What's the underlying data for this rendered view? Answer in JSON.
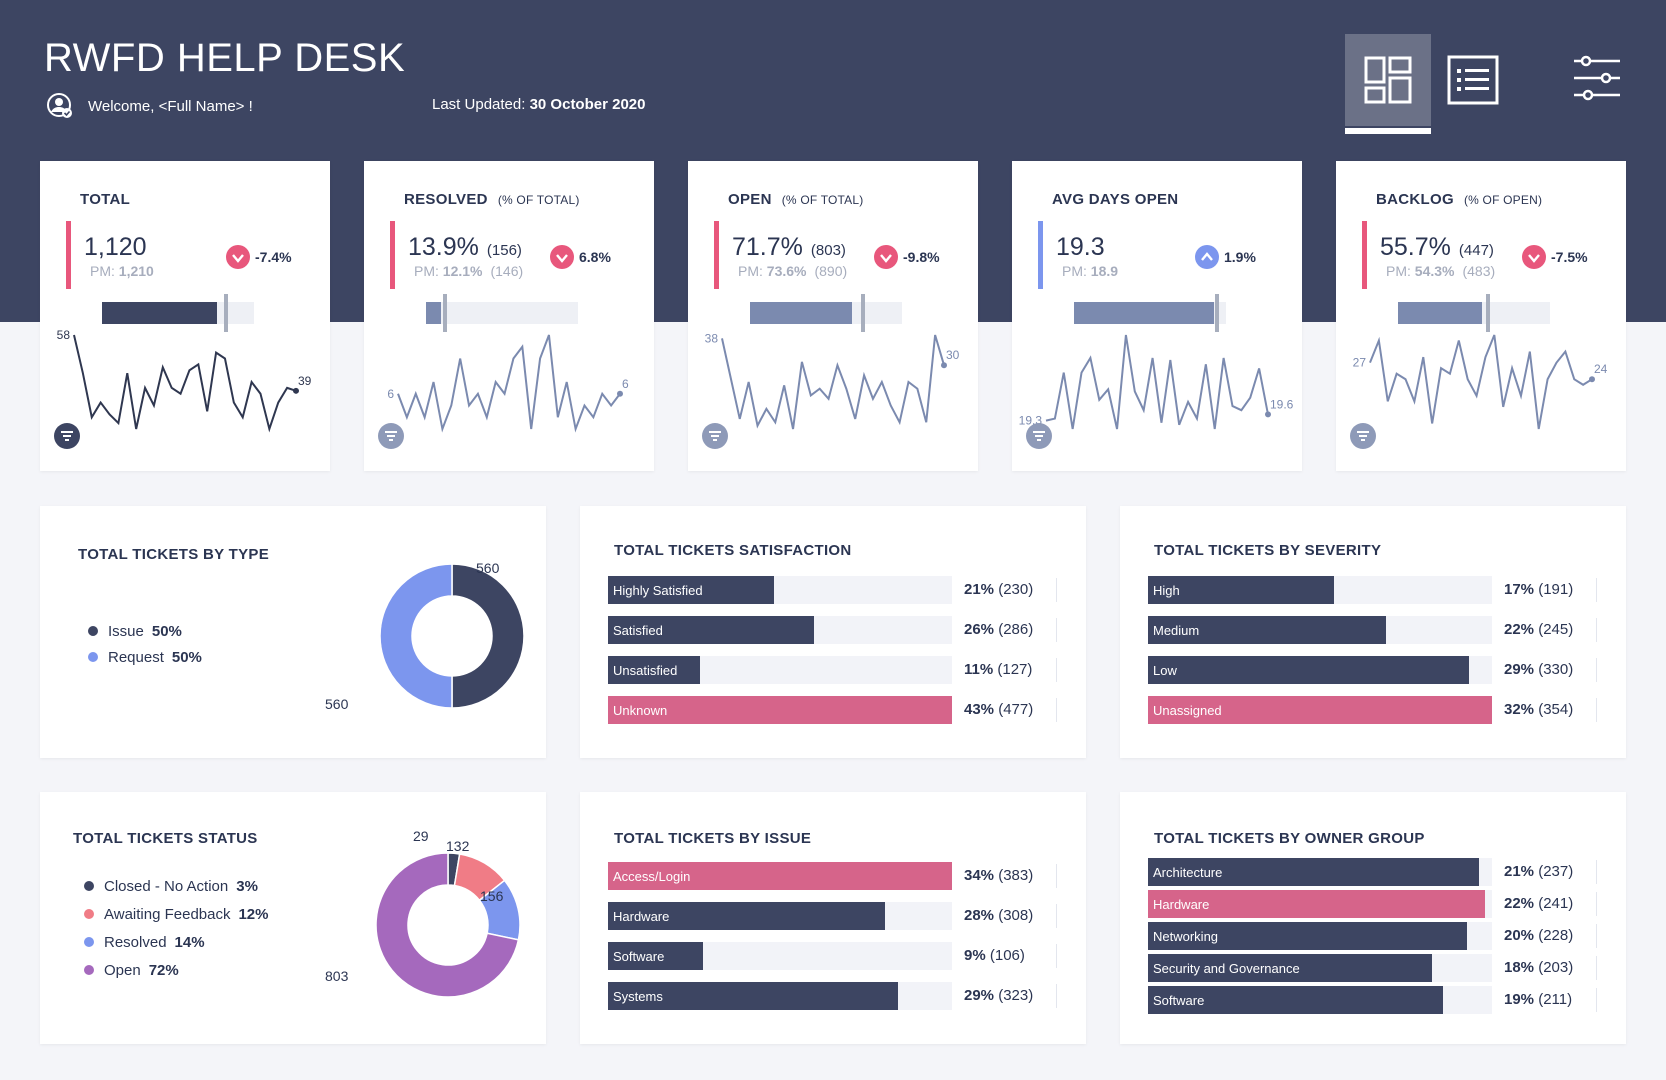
{
  "header": {
    "title": "RWFD HELP DESK",
    "welcome": "Welcome, <Full Name> !",
    "last_updated_label": "Last Updated:",
    "last_updated_value": "30 October 2020"
  },
  "kpis": [
    {
      "title": "TOTAL",
      "subtitle": "",
      "value": "1,120",
      "count": "",
      "pm_label": "PM:",
      "pm_value": "1,210",
      "pm_count": "",
      "delta": "-7.4%",
      "direction": "down",
      "accent": "#e8577c",
      "fill_color": "#3d4562",
      "progress": 0.755,
      "marker": 0.8,
      "spark_start": "58",
      "spark_end": "39",
      "spark_color": "#2f3750"
    },
    {
      "title": "RESOLVED",
      "subtitle": "(% OF TOTAL)",
      "value": "13.9%",
      "count": "(156)",
      "pm_label": "PM:",
      "pm_value": "12.1%",
      "pm_count": "(146)",
      "delta": "6.8%",
      "direction": "down",
      "accent": "#e8577c",
      "fill_color": "#7b8aaf",
      "progress": 0.1,
      "marker": 0.11,
      "spark_start": "6",
      "spark_end": "6",
      "spark_color": "#7b8aaf"
    },
    {
      "title": "OPEN",
      "subtitle": "(% OF TOTAL)",
      "value": "71.7%",
      "count": "(803)",
      "pm_label": "PM:",
      "pm_value": "73.6%",
      "pm_count": "(890)",
      "delta": "-9.8%",
      "direction": "down",
      "accent": "#e8577c",
      "fill_color": "#7b8aaf",
      "progress": 0.67,
      "marker": 0.73,
      "spark_start": "38",
      "spark_end": "30",
      "spark_color": "#7b8aaf"
    },
    {
      "title": "AVG DAYS OPEN",
      "subtitle": "",
      "value": "19.3",
      "count": "",
      "pm_label": "PM:",
      "pm_value": "18.9",
      "pm_count": "",
      "delta": "1.9%",
      "direction": "up",
      "accent": "#7c96ee",
      "fill_color": "#7b8aaf",
      "progress": 0.92,
      "marker": 0.93,
      "spark_start": "19.3",
      "spark_end": "19.6",
      "spark_color": "#7b8aaf"
    },
    {
      "title": "BACKLOG",
      "subtitle": "(% OF OPEN)",
      "value": "55.7%",
      "count": "(447)",
      "pm_label": "PM:",
      "pm_value": "54.3%",
      "pm_count": "(483)",
      "delta": "-7.5%",
      "direction": "down",
      "accent": "#e8577c",
      "fill_color": "#7b8aaf",
      "progress": 0.55,
      "marker": 0.58,
      "spark_start": "27",
      "spark_end": "24",
      "spark_color": "#7b8aaf"
    }
  ],
  "by_type": {
    "title": "TOTAL TICKETS BY TYPE",
    "legend": [
      {
        "label": "Issue",
        "pct": "50%",
        "color": "#3d4562"
      },
      {
        "label": "Request",
        "pct": "50%",
        "color": "#7c96ee"
      }
    ],
    "labels": [
      "560",
      "560"
    ]
  },
  "satisfaction": {
    "title": "TOTAL TICKETS SATISFACTION",
    "rows": [
      {
        "label": "Highly Satisfied",
        "pct": "21%",
        "count": "(230)",
        "color": "#3d4562"
      },
      {
        "label": "Satisfied",
        "pct": "26%",
        "count": "(286)",
        "color": "#3d4562"
      },
      {
        "label": "Unsatisfied",
        "pct": "11%",
        "count": "(127)",
        "color": "#3d4562"
      },
      {
        "label": "Unknown",
        "pct": "43%",
        "count": "(477)",
        "color": "#d6648a"
      }
    ]
  },
  "severity": {
    "title": "TOTAL TICKETS BY SEVERITY",
    "rows": [
      {
        "label": "High",
        "pct": "17%",
        "count": "(191)",
        "color": "#3d4562"
      },
      {
        "label": "Medium",
        "pct": "22%",
        "count": "(245)",
        "color": "#3d4562"
      },
      {
        "label": "Low",
        "pct": "29%",
        "count": "(330)",
        "color": "#3d4562"
      },
      {
        "label": "Unassigned",
        "pct": "32%",
        "count": "(354)",
        "color": "#d6648a"
      }
    ]
  },
  "status": {
    "title": "TOTAL TICKETS STATUS",
    "legend": [
      {
        "label": "Closed - No Action",
        "pct": "3%",
        "color": "#3d4562"
      },
      {
        "label": "Awaiting Feedback",
        "pct": "12%",
        "color": "#f07c86"
      },
      {
        "label": "Resolved",
        "pct": "14%",
        "color": "#7c96ee"
      },
      {
        "label": "Open",
        "pct": "72%",
        "color": "#a569bd"
      }
    ],
    "labels": [
      "29",
      "132",
      "156",
      "803"
    ]
  },
  "by_issue": {
    "title": "TOTAL TICKETS BY ISSUE",
    "rows": [
      {
        "label": "Access/Login",
        "pct": "34%",
        "count": "(383)",
        "color": "#d6648a"
      },
      {
        "label": "Hardware",
        "pct": "28%",
        "count": "(308)",
        "color": "#3d4562"
      },
      {
        "label": "Software",
        "pct": "9%",
        "count": "(106)",
        "color": "#3d4562"
      },
      {
        "label": "Systems",
        "pct": "29%",
        "count": "(323)",
        "color": "#3d4562"
      }
    ]
  },
  "owner_group": {
    "title": "TOTAL TICKETS BY OWNER GROUP",
    "rows": [
      {
        "label": "Architecture",
        "pct": "21%",
        "count": "(237)",
        "color": "#3d4562"
      },
      {
        "label": "Hardware",
        "pct": "22%",
        "count": "(241)",
        "color": "#d6648a"
      },
      {
        "label": "Networking",
        "pct": "20%",
        "count": "(228)",
        "color": "#3d4562"
      },
      {
        "label": "Security and Governance",
        "pct": "18%",
        "count": "(203)",
        "color": "#3d4562"
      },
      {
        "label": "Software",
        "pct": "19%",
        "count": "(211)",
        "color": "#3d4562"
      }
    ]
  },
  "chart_data": [
    {
      "type": "pie",
      "title": "TOTAL TICKETS BY TYPE",
      "categories": [
        "Issue",
        "Request"
      ],
      "values": [
        560,
        560
      ]
    },
    {
      "type": "pie",
      "title": "TOTAL TICKETS STATUS",
      "categories": [
        "Closed - No Action",
        "Awaiting Feedback",
        "Resolved",
        "Open"
      ],
      "values": [
        29,
        132,
        156,
        803
      ]
    },
    {
      "type": "bar",
      "title": "TOTAL TICKETS SATISFACTION",
      "categories": [
        "Highly Satisfied",
        "Satisfied",
        "Unsatisfied",
        "Unknown"
      ],
      "values": [
        230,
        286,
        127,
        477
      ]
    },
    {
      "type": "bar",
      "title": "TOTAL TICKETS BY SEVERITY",
      "categories": [
        "High",
        "Medium",
        "Low",
        "Unassigned"
      ],
      "values": [
        191,
        245,
        330,
        354
      ]
    },
    {
      "type": "bar",
      "title": "TOTAL TICKETS BY ISSUE",
      "categories": [
        "Access/Login",
        "Hardware",
        "Software",
        "Systems"
      ],
      "values": [
        383,
        308,
        106,
        323
      ]
    },
    {
      "type": "bar",
      "title": "TOTAL TICKETS BY OWNER GROUP",
      "categories": [
        "Architecture",
        "Hardware",
        "Networking",
        "Security and Governance",
        "Software"
      ],
      "values": [
        237,
        241,
        228,
        203,
        211
      ]
    },
    {
      "type": "line",
      "title": "TOTAL",
      "values": [
        58,
        45,
        30,
        35,
        31,
        28,
        45,
        26,
        40,
        34,
        47,
        40,
        38,
        46,
        48,
        32,
        52,
        50,
        35,
        30,
        42,
        38,
        26,
        35,
        40,
        39
      ]
    },
    {
      "type": "line",
      "title": "RESOLVED",
      "values": [
        6,
        4,
        6,
        4,
        7,
        3,
        5,
        9,
        5,
        6,
        4,
        7,
        6,
        9,
        10,
        3,
        9,
        11,
        4,
        7,
        3,
        5,
        4,
        6,
        5,
        6
      ]
    },
    {
      "type": "line",
      "title": "OPEN",
      "values": [
        38,
        26,
        14,
        25,
        12,
        17,
        13,
        24,
        11,
        31,
        21,
        23,
        20,
        30,
        23,
        14,
        27,
        20,
        25,
        18,
        13,
        25,
        23,
        13,
        39,
        30
      ]
    },
    {
      "type": "line",
      "title": "AVG DAYS OPEN",
      "values": [
        19.3,
        19.4,
        21.6,
        18.9,
        21.6,
        22.3,
        20.3,
        20.8,
        18.9,
        23.4,
        20.7,
        19.8,
        22.3,
        19.2,
        22.2,
        19.1,
        20.2,
        19.4,
        22.0,
        18.9,
        22.3,
        20.0,
        19.8,
        20.4,
        21.8,
        19.6
      ]
    },
    {
      "type": "line",
      "title": "BACKLOG",
      "values": [
        27,
        31,
        20,
        25,
        24,
        20,
        28,
        16,
        26,
        25,
        31,
        24,
        21,
        28,
        32,
        19,
        26,
        21,
        29,
        15,
        24,
        27,
        29,
        24,
        23,
        24
      ]
    }
  ]
}
